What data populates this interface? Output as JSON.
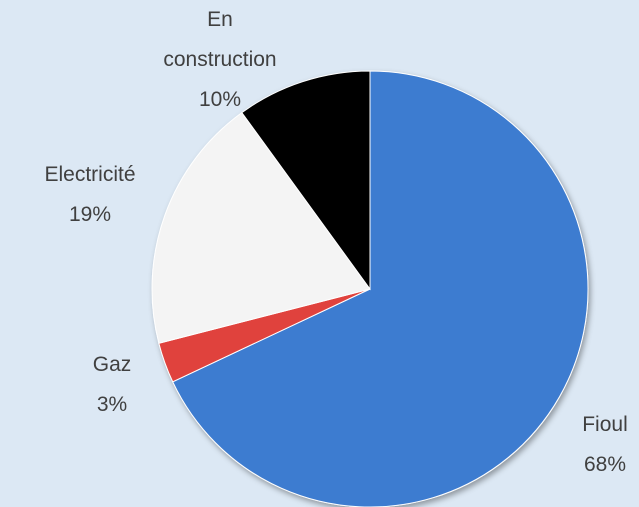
{
  "chart_data": {
    "type": "pie",
    "categories": [
      "Fioul",
      "Gaz",
      "Electricité",
      "En construction"
    ],
    "values": [
      68,
      3,
      19,
      10
    ],
    "value_labels": [
      "68%",
      "3%",
      "19%",
      "10%"
    ],
    "colors": [
      "#3d7bd0",
      "#e0423c",
      "#f4f4f4",
      "#000000"
    ]
  }
}
